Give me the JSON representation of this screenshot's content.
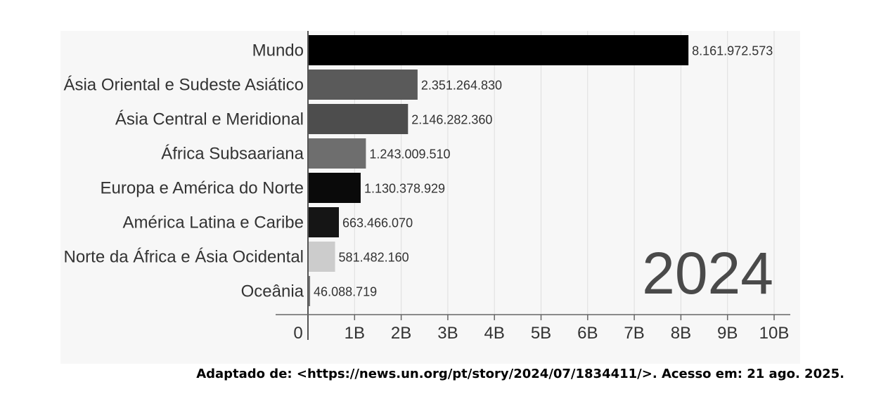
{
  "chart_data": {
    "type": "bar",
    "orientation": "horizontal",
    "year": "2024",
    "categories": [
      "Mundo",
      "Ásia Oriental e Sudeste Asiático",
      "Ásia Central e Meridional",
      "África Subsaariana",
      "Europa e América do Norte",
      "América Latina e Caribe",
      "Norte da África e Ásia Ocidental",
      "Oceânia"
    ],
    "values": [
      8161972573,
      2351264830,
      2146282360,
      1243009510,
      1130378929,
      663466070,
      581482160,
      46088719
    ],
    "value_labels": [
      "8.161.972.573",
      "2.351.264.830",
      "2.146.282.360",
      "1.243.009.510",
      "1.130.378.929",
      "663.466.070",
      "581.482.160",
      "46.088.719"
    ],
    "bar_colors": [
      "#000000",
      "#5a5a5a",
      "#4d4d4d",
      "#6e6e6e",
      "#0a0a0a",
      "#151515",
      "#cccccc",
      "#777777"
    ],
    "x_ticks": [
      0,
      1000000000,
      2000000000,
      3000000000,
      4000000000,
      5000000000,
      6000000000,
      7000000000,
      8000000000,
      9000000000,
      10000000000
    ],
    "x_tick_labels": [
      "0",
      "1B",
      "2B",
      "3B",
      "4B",
      "5B",
      "6B",
      "7B",
      "8B",
      "9B",
      "10B"
    ],
    "xlim": [
      0,
      10000000000
    ],
    "grid": true,
    "title": "",
    "xlabel": "",
    "ylabel": ""
  },
  "source": "Adaptado de: <https://news.un.org/pt/story/2024/07/1834411/>. Acesso em: 21 ago. 2025."
}
